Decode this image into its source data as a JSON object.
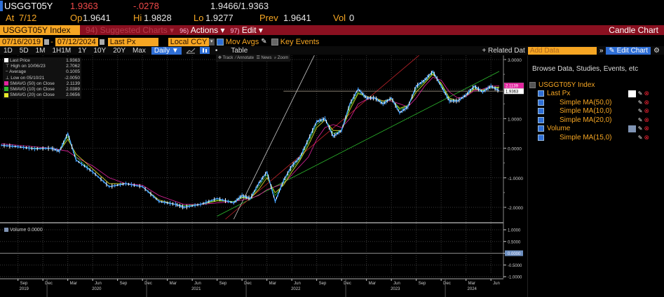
{
  "quote": {
    "ticker": "USGGT05Y",
    "last": "1.9363",
    "change": "-.0278",
    "bid_ask": "1.9466/1.9363",
    "at_label": "At",
    "at_date": "7/12",
    "op_label": "Op",
    "op": "1.9641",
    "hi_label": "Hi",
    "hi": "1.9828",
    "lo_label": "Lo",
    "lo": "1.9277",
    "prev_label": "Prev",
    "prev": "1.9641",
    "vol_label": "Vol",
    "vol": "0"
  },
  "menubar": {
    "security": "USGGT05Y Index",
    "suggested": "94) Suggested Charts ▾",
    "actions_num": "96)",
    "actions": "Actions ▾",
    "edit_num": "97)",
    "edit": "Edit ▾",
    "chart_type": "Candle Chart"
  },
  "controls": {
    "start_date": "07/16/2019",
    "dash": "-",
    "end_date": "07/12/2024",
    "field": "Last Px",
    "currency": "Local CCY",
    "mov_avgs": "Mov Avgs",
    "key_events": "Key Events"
  },
  "periods": {
    "items": [
      "1D",
      "5D",
      "1M",
      "1H1M",
      "1Y",
      "10Y",
      "20Y",
      "Max"
    ],
    "frequency": "Daily ▼",
    "table": "Table",
    "related": "+ Related Dat",
    "add_data_placeholder": "Add Data",
    "more": "»",
    "edit_chart": "Edit Chart"
  },
  "legend": {
    "items": [
      {
        "label": "Last Price",
        "value": "1.9363",
        "color": "#ffffff"
      },
      {
        "label": "High on 10/06/23",
        "value": "2.7062",
        "color": ""
      },
      {
        "label": "Average",
        "value": "0.1005",
        "color": ""
      },
      {
        "label": "Low on 05/10/21",
        "value": "-2.0050",
        "color": ""
      },
      {
        "label": "SMAVG (50)  on Close",
        "value": "2.1139",
        "color": "#e3239e"
      },
      {
        "label": "SMAVG (10)  on Close",
        "value": "2.0389",
        "color": "#2ebd2e"
      },
      {
        "label": "SMAVG (20)  on Close",
        "value": "2.0656",
        "color": "#e8e82a"
      }
    ]
  },
  "chart_tools": {
    "track": "Track",
    "annotate": "Annotate",
    "news": "News",
    "zoom": "Zoom"
  },
  "volume_legend": {
    "label": "Volume",
    "value": "0.0000"
  },
  "axis": {
    "price_ticks": [
      "3.0000",
      "1.0000",
      "0.0000",
      "-1.0000",
      "-2.0000"
    ],
    "last_tag": "1.9363",
    "ma_tag": "2.1139",
    "volume_ticks": [
      "1.0000",
      "0.5000",
      "0.0000",
      "-0.5000",
      "-1.0000"
    ],
    "months": [
      "Sep",
      "Dec",
      "Mar",
      "Jun",
      "Sep",
      "Dec",
      "Mar",
      "Jun",
      "Sep",
      "Dec",
      "Mar",
      "Jun",
      "Sep",
      "Dec",
      "Mar",
      "Jun",
      "Sep",
      "Dec",
      "Mar",
      "Jun"
    ],
    "years": [
      "2019",
      "2020",
      "2021",
      "2022",
      "2023",
      "2024"
    ]
  },
  "panel": {
    "browse": "Browse Data, Studies, Events, etc",
    "tree": [
      {
        "label": "USGGT05Y Index",
        "indent": 0,
        "swatch": "",
        "header": true
      },
      {
        "label": "Last Px",
        "indent": 1,
        "swatch": "#ffffff"
      },
      {
        "label": "Simple MA(50,0)",
        "indent": 2,
        "swatch": ""
      },
      {
        "label": "Simple MA(10,0)",
        "indent": 2,
        "swatch": ""
      },
      {
        "label": "Simple MA(20,0)",
        "indent": 2,
        "swatch": ""
      },
      {
        "label": "Volume",
        "indent": 1,
        "swatch": "#7f93b3"
      },
      {
        "label": "Simple MA(15,0)",
        "indent": 2,
        "swatch": ""
      }
    ]
  },
  "colors": {
    "brand_red": "#8a1020",
    "amber": "#f6a623",
    "blue": "#2f6fd6",
    "price": "#4aa3ff",
    "ma50": "#e3239e",
    "ma10": "#2ebd2e",
    "ma20": "#e8e82a"
  },
  "chart_data": {
    "type": "line",
    "title": "USGGT05Y Index - Candle Chart",
    "xlabel": "",
    "ylabel": "",
    "ylim": [
      -2.5,
      3.2
    ],
    "x": [
      "2019-07",
      "2019-09",
      "2019-11",
      "2020-01",
      "2020-02",
      "2020-03",
      "2020-04",
      "2020-06",
      "2020-08",
      "2020-10",
      "2020-12",
      "2021-02",
      "2021-04",
      "2021-05",
      "2021-07",
      "2021-09",
      "2021-11",
      "2021-12",
      "2022-01",
      "2022-02",
      "2022-03",
      "2022-04",
      "2022-05",
      "2022-06",
      "2022-07",
      "2022-08",
      "2022-09",
      "2022-10",
      "2022-11",
      "2022-12",
      "2023-01",
      "2023-02",
      "2023-03",
      "2023-04",
      "2023-05",
      "2023-06",
      "2023-07",
      "2023-08",
      "2023-09",
      "2023-10",
      "2023-11",
      "2023-12",
      "2024-01",
      "2024-02",
      "2024-03",
      "2024-04",
      "2024-05",
      "2024-06",
      "2024-07"
    ],
    "series": [
      {
        "name": "Last Price",
        "values": [
          0.1,
          0.05,
          -0.02,
          0.0,
          -0.1,
          0.5,
          -0.4,
          -0.8,
          -1.3,
          -1.2,
          -1.3,
          -1.8,
          -1.9,
          -2.0,
          -1.9,
          -1.7,
          -1.85,
          -1.6,
          -1.7,
          -1.2,
          -0.8,
          -1.8,
          -1.1,
          -0.6,
          -0.3,
          0.3,
          0.9,
          1.0,
          0.4,
          0.6,
          1.5,
          2.0,
          1.7,
          1.7,
          1.5,
          1.7,
          1.2,
          1.4,
          2.1,
          2.3,
          2.6,
          2.1,
          1.6,
          1.6,
          1.8,
          2.1,
          1.9,
          2.1,
          1.94
        ]
      },
      {
        "name": "SMAVG (50) on Close",
        "values": [
          0.15,
          0.1,
          0.05,
          0.0,
          -0.05,
          -0.1,
          -0.3,
          -0.6,
          -1.0,
          -1.2,
          -1.25,
          -1.6,
          -1.8,
          -1.9,
          -1.9,
          -1.85,
          -1.8,
          -1.75,
          -1.7,
          -1.6,
          -1.4,
          -1.3,
          -1.2,
          -0.9,
          -0.6,
          -0.3,
          0.3,
          0.7,
          0.8,
          0.7,
          1.0,
          1.5,
          1.65,
          1.7,
          1.6,
          1.6,
          1.5,
          1.4,
          1.7,
          2.1,
          2.4,
          2.3,
          1.9,
          1.7,
          1.75,
          1.95,
          2.0,
          2.1,
          2.11
        ]
      },
      {
        "name": "SMAVG (10) on Close",
        "values": [
          0.1,
          0.05,
          0.0,
          0.0,
          -0.1,
          0.4,
          -0.3,
          -0.8,
          -1.3,
          -1.2,
          -1.3,
          -1.8,
          -1.9,
          -1.95,
          -1.9,
          -1.75,
          -1.8,
          -1.65,
          -1.7,
          -1.3,
          -0.9,
          -1.6,
          -1.2,
          -0.7,
          -0.35,
          0.2,
          0.8,
          1.0,
          0.5,
          0.6,
          1.4,
          1.9,
          1.7,
          1.7,
          1.55,
          1.7,
          1.3,
          1.45,
          2.0,
          2.25,
          2.55,
          2.15,
          1.65,
          1.6,
          1.8,
          2.05,
          1.95,
          2.05,
          2.04
        ]
      },
      {
        "name": "SMAVG (20) on Close",
        "values": [
          0.1,
          0.05,
          0.0,
          0.0,
          -0.1,
          0.3,
          -0.2,
          -0.7,
          -1.2,
          -1.2,
          -1.3,
          -1.75,
          -1.9,
          -1.95,
          -1.9,
          -1.78,
          -1.8,
          -1.68,
          -1.7,
          -1.4,
          -1.0,
          -1.5,
          -1.25,
          -0.8,
          -0.4,
          0.1,
          0.7,
          0.95,
          0.6,
          0.6,
          1.3,
          1.85,
          1.75,
          1.7,
          1.6,
          1.65,
          1.35,
          1.45,
          1.9,
          2.2,
          2.5,
          2.2,
          1.7,
          1.6,
          1.78,
          2.0,
          1.97,
          2.05,
          2.07
        ]
      }
    ],
    "trendlines": [
      {
        "color": "#2ebd2e",
        "from": [
          "2021-09",
          -2.3
        ],
        "to": [
          "2024-07",
          2.6
        ]
      },
      {
        "color": "#c0242c",
        "from": [
          "2021-10",
          -2.4
        ],
        "to": [
          "2023-10",
          3.3
        ]
      },
      {
        "color": "#cccccc",
        "from": [
          "2021-11",
          -2.4
        ],
        "to": [
          "2022-09",
          3.3
        ]
      },
      {
        "color": "#b4a896",
        "horizontal": 1.93,
        "from": "2022-05",
        "to": "2024-07"
      }
    ],
    "annotations": {
      "high": "2.7062 on 10/06/23",
      "low": "-2.0050 on 05/10/21",
      "average": "0.1005",
      "last": "1.9363"
    },
    "volume_panel": {
      "ylim": [
        -1,
        1
      ],
      "values": [
        0
      ]
    },
    "grid": true,
    "legend_position": "top-left"
  }
}
